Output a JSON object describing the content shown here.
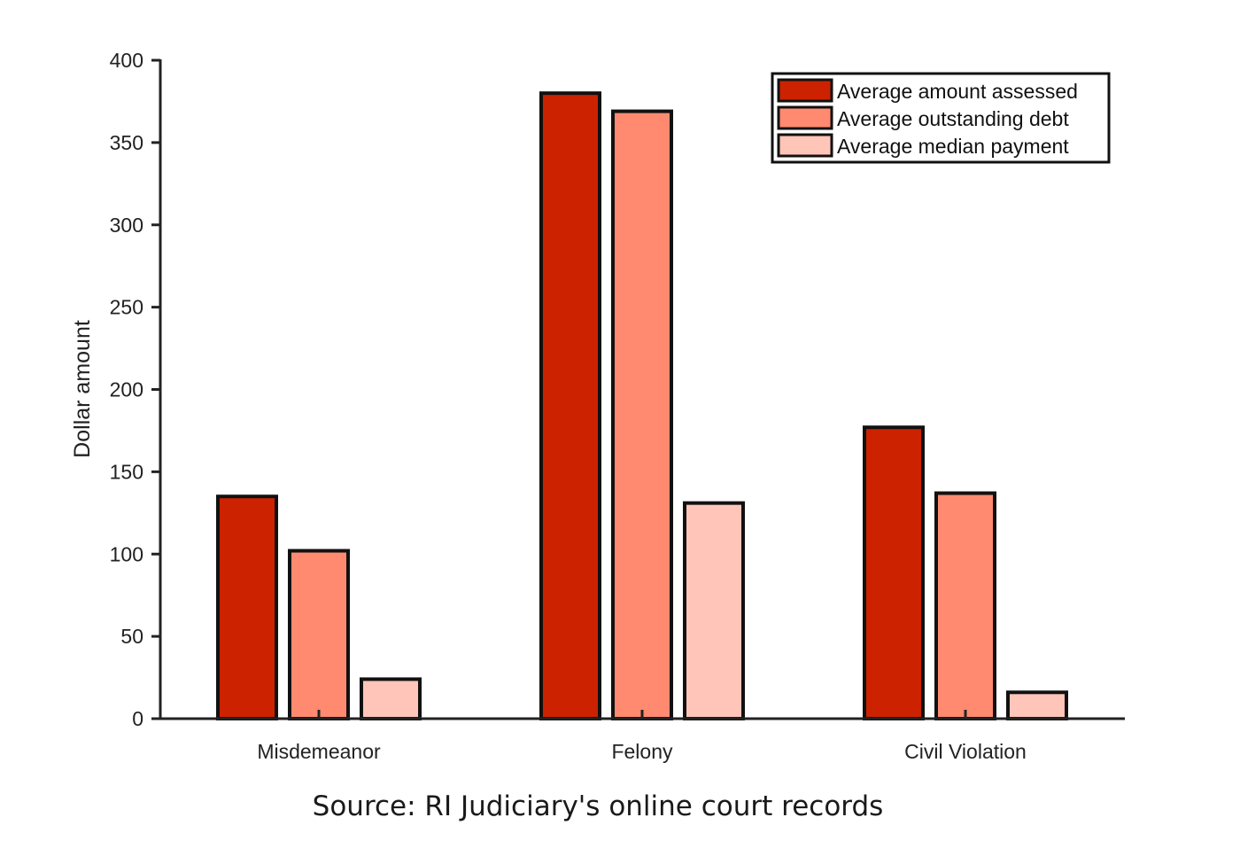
{
  "chart_data": {
    "type": "bar",
    "categories": [
      "Misdemeanor",
      "Felony",
      "Civil Violation"
    ],
    "series": [
      {
        "name": "Average amount assessed",
        "values": [
          135,
          380,
          177
        ],
        "color": "#cc2200"
      },
      {
        "name": "Average outstanding debt",
        "values": [
          102,
          369,
          137
        ],
        "color": "#ff8a70"
      },
      {
        "name": "Average median payment",
        "values": [
          24,
          131,
          16
        ],
        "color": "#ffc5b8"
      }
    ],
    "title": "",
    "xlabel": "",
    "ylabel": "Dollar amount",
    "ylim": [
      0,
      400
    ],
    "yticks": [
      0,
      50,
      100,
      150,
      200,
      250,
      300,
      350,
      400
    ],
    "grid": false,
    "legend_position": "top-right",
    "bar_edge_color": "#111111"
  },
  "note": {
    "source": "Source: RI Judiciary's online court records"
  }
}
